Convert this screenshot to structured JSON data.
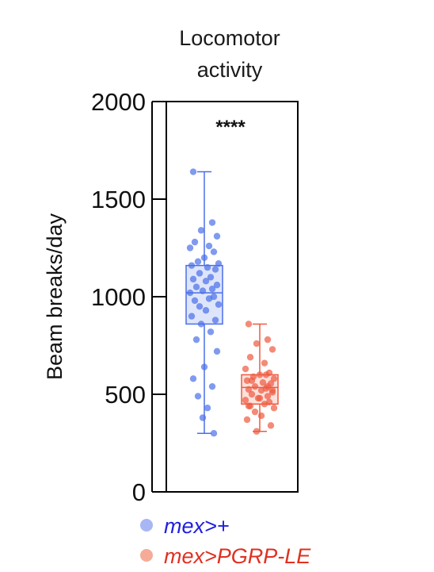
{
  "chart_data": {
    "type": "box",
    "title": "Locomotor\nactivity",
    "ylabel": "Beam breaks/day",
    "ylim": [
      0,
      2000
    ],
    "yticks": [
      "0",
      "500",
      "1000",
      "1500",
      "2000"
    ],
    "significance": "****",
    "series": [
      {
        "name": "mex>+",
        "color": "#4a6fe8",
        "box": {
          "min": 300,
          "q1": 860,
          "median": 1020,
          "q3": 1160,
          "max": 1640
        },
        "points": [
          1640,
          1380,
          1340,
          1310,
          1280,
          1260,
          1250,
          1230,
          1200,
          1180,
          1170,
          1160,
          1150,
          1140,
          1120,
          1100,
          1090,
          1080,
          1060,
          1050,
          1040,
          1030,
          1020,
          1000,
          990,
          980,
          960,
          950,
          930,
          900,
          880,
          860,
          820,
          780,
          720,
          640,
          580,
          540,
          490,
          430,
          380,
          300
        ]
      },
      {
        "name": "mex>PGRP-LE",
        "color": "#ee5a3e",
        "box": {
          "min": 310,
          "q1": 450,
          "median": 535,
          "q3": 600,
          "max": 860
        },
        "points": [
          860,
          780,
          760,
          730,
          690,
          660,
          630,
          610,
          600,
          590,
          580,
          570,
          560,
          555,
          540,
          530,
          525,
          520,
          510,
          500,
          490,
          480,
          470,
          460,
          450,
          440,
          430,
          410,
          390,
          370,
          340,
          310,
          600,
          570,
          520,
          480,
          440,
          540
        ]
      }
    ]
  },
  "legend": [
    {
      "label": "mex>+",
      "text_color": "#1f1fe0",
      "dot_color": "#a9b6f5"
    },
    {
      "label": "mex>PGRP-LE",
      "text_color": "#e03020",
      "dot_color": "#f5ab98"
    }
  ]
}
